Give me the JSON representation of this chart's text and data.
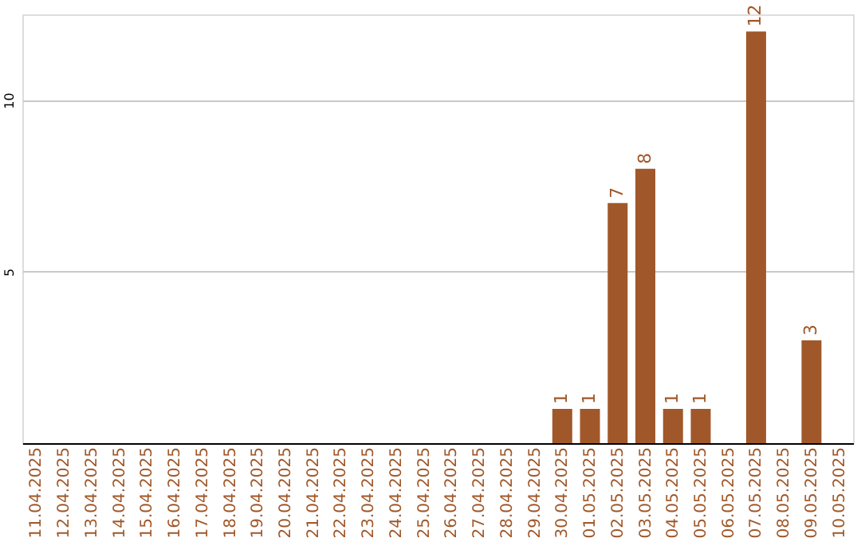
{
  "chart_data": {
    "type": "bar",
    "categories": [
      "11.04.2025",
      "12.04.2025",
      "13.04.2025",
      "14.04.2025",
      "15.04.2025",
      "16.04.2025",
      "17.04.2025",
      "18.04.2025",
      "19.04.2025",
      "20.04.2025",
      "21.04.2025",
      "22.04.2025",
      "23.04.2025",
      "24.04.2025",
      "25.04.2025",
      "26.04.2025",
      "27.04.2025",
      "28.04.2025",
      "29.04.2025",
      "30.04.2025",
      "01.05.2025",
      "02.05.2025",
      "03.05.2025",
      "04.05.2025",
      "05.05.2025",
      "06.05.2025",
      "07.05.2025",
      "08.05.2025",
      "09.05.2025",
      "10.05.2025"
    ],
    "values": [
      0,
      0,
      0,
      0,
      0,
      0,
      0,
      0,
      0,
      0,
      0,
      0,
      0,
      0,
      0,
      0,
      0,
      0,
      0,
      1,
      1,
      7,
      8,
      1,
      1,
      0,
      12,
      0,
      3,
      0
    ],
    "value_labels": [
      null,
      null,
      null,
      null,
      null,
      null,
      null,
      null,
      null,
      null,
      null,
      null,
      null,
      null,
      null,
      null,
      null,
      null,
      null,
      "1",
      "1",
      "7",
      "8",
      "1",
      "1",
      null,
      "12",
      null,
      "3",
      null
    ],
    "color": "#a0582a",
    "ylim": [
      0,
      12.5
    ],
    "yticks": [
      5,
      10
    ],
    "grid": "y"
  }
}
